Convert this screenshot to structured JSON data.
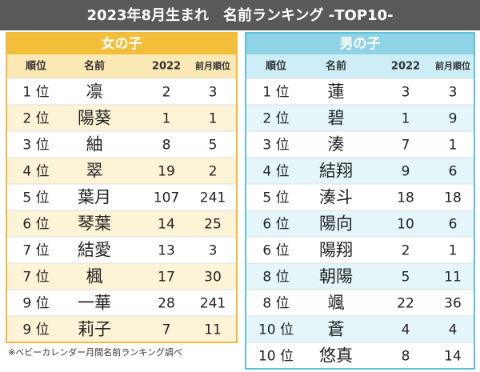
{
  "title": "2023年8月生まれ　名前ランキング -TOP10-",
  "girls": {
    "title": "女の子",
    "headers": [
      "順位",
      "名前",
      "2022",
      "前月順位"
    ],
    "rows": [
      [
        "1 位",
        "凛",
        2,
        3
      ],
      [
        "2 位",
        "陽葵",
        1,
        1
      ],
      [
        "3 位",
        "紬",
        8,
        5
      ],
      [
        "4 位",
        "翠",
        19,
        2
      ],
      [
        "5 位",
        "葉月",
        107,
        241
      ],
      [
        "6 位",
        "琴葉",
        14,
        25
      ],
      [
        "7 位",
        "結愛",
        13,
        3
      ],
      [
        "7 位",
        "楓",
        17,
        30
      ],
      [
        "9 位",
        "一華",
        28,
        241
      ],
      [
        "9 位",
        "莉子",
        7,
        11
      ]
    ]
  },
  "boys": {
    "title": "男の子",
    "headers": [
      "順位",
      "名前",
      "2022",
      "前月順位"
    ],
    "rows": [
      [
        "1 位",
        "蓮",
        3,
        3
      ],
      [
        "2 位",
        "碧",
        1,
        9
      ],
      [
        "3 位",
        "湊",
        7,
        1
      ],
      [
        "4 位",
        "結翔",
        9,
        6
      ],
      [
        "5 位",
        "湊斗",
        18,
        18
      ],
      [
        "6 位",
        "陽向",
        10,
        6
      ],
      [
        "6 位",
        "陽翔",
        2,
        1
      ],
      [
        "8 位",
        "朝陽",
        5,
        11
      ],
      [
        "8 位",
        "颯",
        22,
        36
      ],
      [
        "10 位",
        "蒼",
        4,
        4
      ],
      [
        "10 位",
        "悠真",
        8,
        14
      ]
    ]
  },
  "footnote": "※ベビーカレンダー月間名前ランキング調べ"
}
